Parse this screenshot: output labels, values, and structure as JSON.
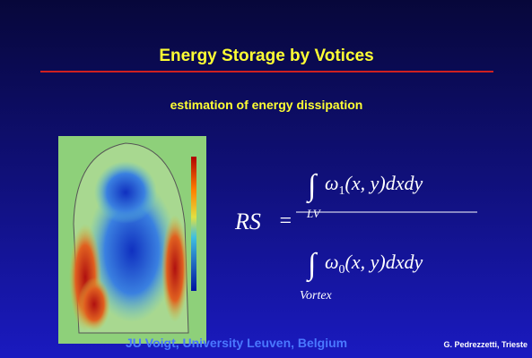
{
  "slide": {
    "title": "Energy Storage by Votices",
    "subtitle": "estimation of energy dissipation",
    "formula": {
      "lhs": "RS",
      "equals": "=",
      "integral": "∫",
      "numerator": {
        "symbol": "ω",
        "subscript": "1",
        "rest": "(x, y)dxdy",
        "domain": "LV"
      },
      "denominator": {
        "symbol": "ω",
        "subscript": "0",
        "rest": "(x, y)dxdy",
        "domain": "Vortex"
      }
    },
    "credit": "JU Voigt, University Leuven, Belgium",
    "author": "G. Pedrezzetti, Trieste"
  }
}
